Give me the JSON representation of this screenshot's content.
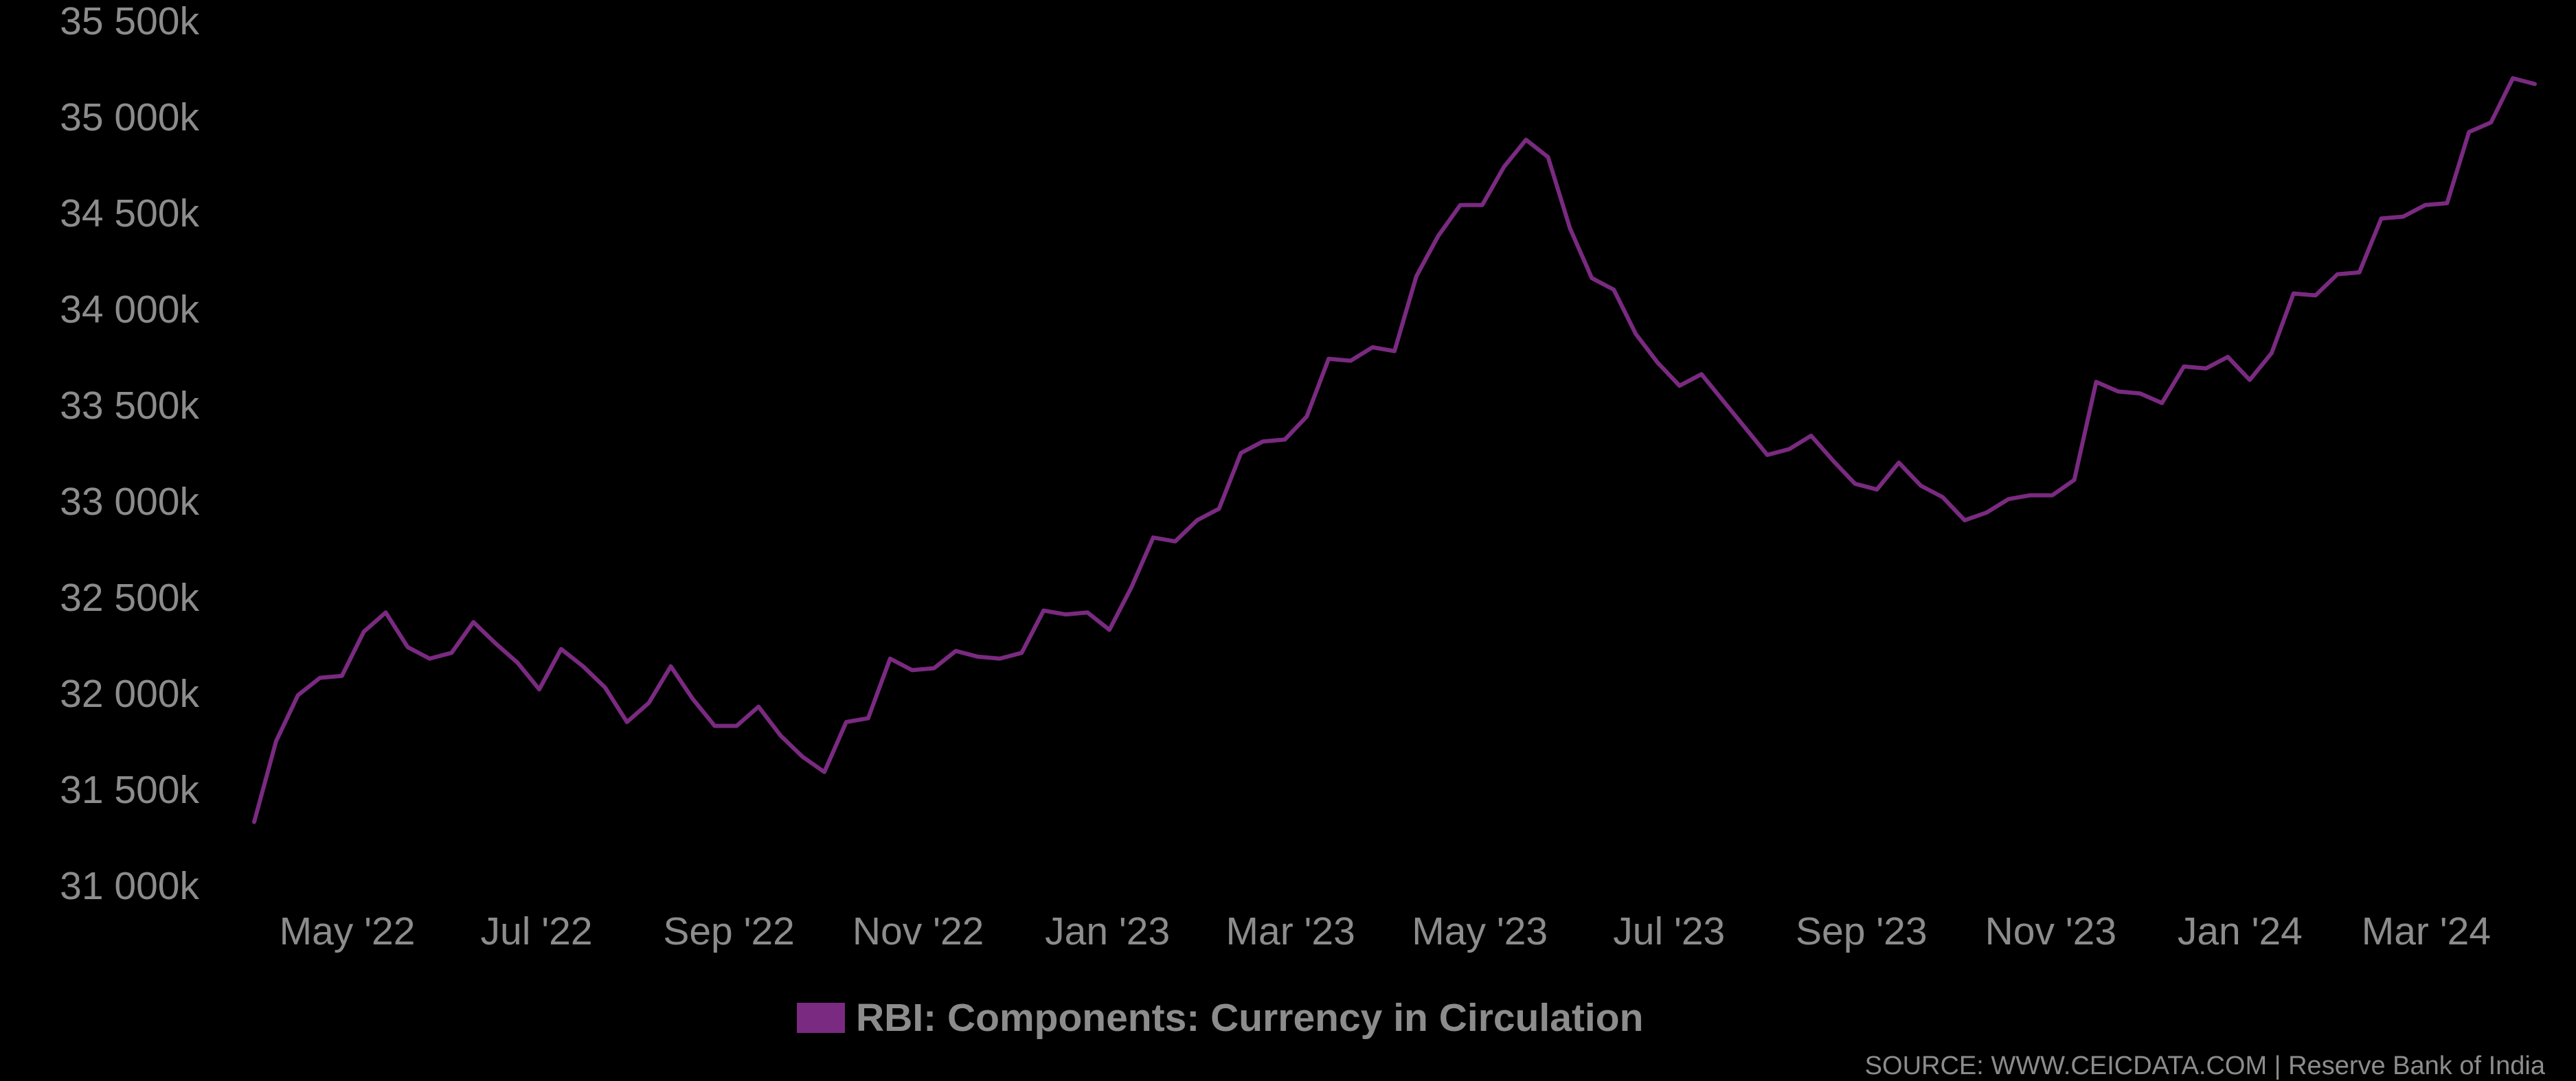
{
  "chart_data": {
    "type": "line",
    "series": [
      {
        "name": "RBI: Components: Currency in Circulation",
        "color": "#7a2a80",
        "values": [
          31330,
          31750,
          31990,
          32080,
          32090,
          32320,
          32420,
          32240,
          32180,
          32210,
          32370,
          32260,
          32160,
          32020,
          32230,
          32140,
          32030,
          31850,
          31950,
          32140,
          31970,
          31830,
          31830,
          31930,
          31780,
          31670,
          31590,
          31850,
          31870,
          32180,
          32120,
          32130,
          32220,
          32190,
          32180,
          32210,
          32430,
          32410,
          32420,
          32330,
          32550,
          32810,
          32790,
          32900,
          32960,
          33250,
          33310,
          33320,
          33440,
          33740,
          33730,
          33800,
          33780,
          34170,
          34380,
          34540,
          34540,
          34740,
          34880,
          34790,
          34420,
          34160,
          34100,
          33870,
          33720,
          33600,
          33660,
          33520,
          33380,
          33240,
          33270,
          33340,
          33210,
          33090,
          33060,
          33200,
          33080,
          33020,
          32900,
          32940,
          33010,
          33030,
          33030,
          33110,
          33620,
          33570,
          33560,
          33510,
          33700,
          33690,
          33750,
          33630,
          33770,
          34080,
          34070,
          34180,
          34190,
          34470,
          34480,
          34540,
          34550,
          34920,
          34970,
          35200,
          35170
        ]
      }
    ],
    "x_start": "2022-04-01",
    "x_end": "2024-04-05",
    "x_ticks": [
      "May '22",
      "Jul '22",
      "Sep '22",
      "Nov '22",
      "Jan '23",
      "Mar '23",
      "May '23",
      "Jul '23",
      "Sep '23",
      "Nov '23",
      "Jan '24",
      "Mar '24"
    ],
    "x_tick_dates": [
      "2022-05-01",
      "2022-07-01",
      "2022-09-01",
      "2022-11-01",
      "2023-01-01",
      "2023-03-01",
      "2023-05-01",
      "2023-07-01",
      "2023-09-01",
      "2023-11-01",
      "2024-01-01",
      "2024-03-01"
    ],
    "y_ticks": [
      31000,
      31500,
      32000,
      32500,
      33000,
      33500,
      34000,
      34500,
      35000,
      35500
    ],
    "y_tick_labels": [
      "31 000k",
      "31 500k",
      "32 000k",
      "32 500k",
      "33 000k",
      "33 500k",
      "34 000k",
      "34 500k",
      "35 000k",
      "35 500k"
    ],
    "ylim": [
      31000,
      35500
    ],
    "grid": false,
    "legend_position": "bottom-center"
  },
  "legend": {
    "label": "RBI: Components: Currency in Circulation",
    "color": "#7a2a80"
  },
  "source": "SOURCE: WWW.CEICDATA.COM | Reserve Bank of India"
}
